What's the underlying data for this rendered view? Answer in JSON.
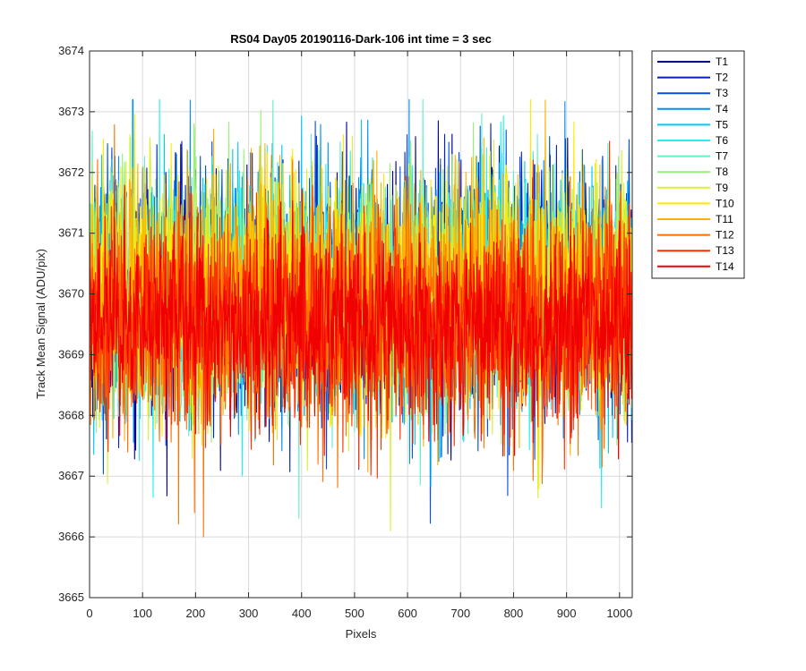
{
  "chart_data": {
    "type": "line",
    "title": "RS04 Day05 20190116-Dark-106 int time = 3 sec",
    "xlabel": "Pixels",
    "ylabel": "Track Mean Signal (ADU/pix)",
    "xlim": [
      0,
      1024
    ],
    "ylim": [
      3665,
      3674
    ],
    "xticks": [
      "0",
      "100",
      "200",
      "300",
      "400",
      "500",
      "600",
      "700",
      "800",
      "900",
      "1000"
    ],
    "yticks": [
      "3665",
      "3666",
      "3667",
      "3668",
      "3669",
      "3670",
      "3671",
      "3672",
      "3673",
      "3674"
    ],
    "grid": true,
    "legend_position": "outside-top-right",
    "n_points": 1024,
    "series": [
      {
        "name": "T1",
        "color": "#00008F",
        "mean": 3670.0,
        "sd": 0.95
      },
      {
        "name": "T2",
        "color": "#0020C0",
        "mean": 3670.0,
        "sd": 0.95
      },
      {
        "name": "T3",
        "color": "#0050E8",
        "mean": 3670.0,
        "sd": 0.95
      },
      {
        "name": "T4",
        "color": "#0090F0",
        "mean": 3670.0,
        "sd": 0.95
      },
      {
        "name": "T5",
        "color": "#00C8F8",
        "mean": 3670.0,
        "sd": 0.95
      },
      {
        "name": "T6",
        "color": "#20F0F0",
        "mean": 3670.0,
        "sd": 0.95
      },
      {
        "name": "T7",
        "color": "#60F0C8",
        "mean": 3670.0,
        "sd": 0.95
      },
      {
        "name": "T8",
        "color": "#98F078",
        "mean": 3670.0,
        "sd": 0.95
      },
      {
        "name": "T9",
        "color": "#D8F030",
        "mean": 3670.0,
        "sd": 0.95
      },
      {
        "name": "T10",
        "color": "#FFE800",
        "mean": 3670.0,
        "sd": 0.95
      },
      {
        "name": "T11",
        "color": "#FFB000",
        "mean": 3670.0,
        "sd": 0.95
      },
      {
        "name": "T12",
        "color": "#FF7000",
        "mean": 3669.6,
        "sd": 0.95
      },
      {
        "name": "T13",
        "color": "#FF3000",
        "mean": 3669.5,
        "sd": 0.9
      },
      {
        "name": "T14",
        "color": "#F00000",
        "mean": 3669.5,
        "sd": 0.75
      }
    ]
  }
}
